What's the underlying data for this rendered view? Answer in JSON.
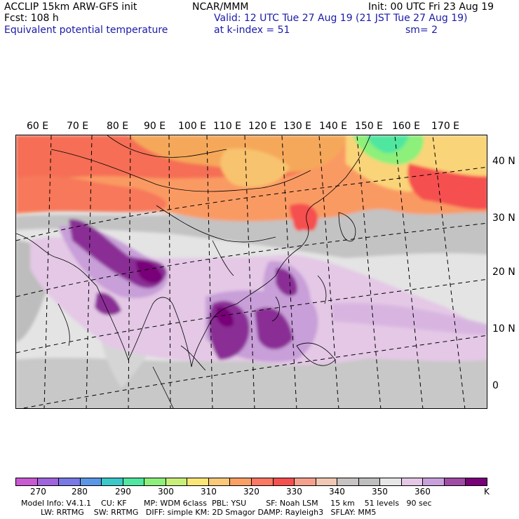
{
  "header": {
    "model": "ACCLIP 15km ARW-GFS init",
    "org": "NCAR/MMM",
    "init": "Init: 00 UTC Fri 23 Aug 19",
    "fcst": "Fcst:  108 h",
    "valid": "Valid: 12 UTC Tue 27 Aug 19 (21 JST Tue 27 Aug 19)",
    "field": "Equivalent potential temperature",
    "level": "at k-index =  51",
    "smooth": "sm= 2"
  },
  "map": {
    "lon_labels": [
      "60 E",
      "70 E",
      "80 E",
      "90 E",
      "100 E",
      "110 E",
      "120 E",
      "130 E",
      "140 E",
      "150 E",
      "160 E",
      "170 E"
    ],
    "lat_labels": [
      "40 N",
      "30 N",
      "20 N",
      "10 N",
      "0"
    ]
  },
  "colorbar": {
    "unit": "K",
    "ticks": [
      "270",
      "280",
      "290",
      "300",
      "310",
      "320",
      "330",
      "340",
      "350",
      "360"
    ],
    "colors": [
      "#c85ad2",
      "#a064dc",
      "#7878e6",
      "#5a96e6",
      "#3cc8c8",
      "#50e6a0",
      "#8cf07a",
      "#c8f078",
      "#fae678",
      "#fac878",
      "#faa064",
      "#fa7864",
      "#f55050",
      "#f5a08c",
      "#f0c8b4",
      "#c8c3c3",
      "#bebebe",
      "#e6e6e6",
      "#e6c8e6",
      "#c8a0dc",
      "#a04ba5",
      "#780078"
    ]
  },
  "info": {
    "line1": "Model Info: V4.1.1    CU: KF       MP: WDM 6class  PBL: YSU        SF: Noah LSM     15 km    51 levels   90 sec",
    "line2": "LW: RRTMG    SW: RRTMG   DIFF: simple KM: 2D Smagor DAMP: Rayleigh3   SFLAY: MM5"
  }
}
